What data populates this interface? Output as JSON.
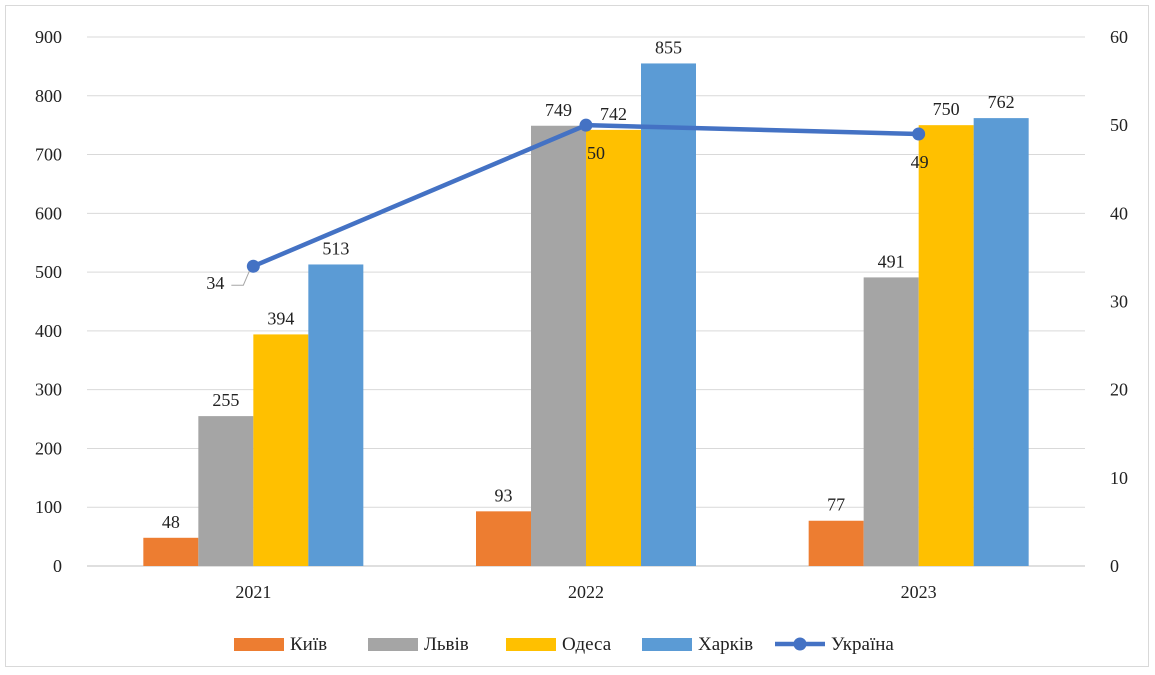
{
  "chart_data": {
    "type": "bar",
    "categories": [
      "2021",
      "2022",
      "2023"
    ],
    "series": [
      {
        "name": "Київ",
        "color": "#ED7D31",
        "values": [
          48,
          93,
          77
        ]
      },
      {
        "name": "Львів",
        "color": "#A5A5A5",
        "values": [
          255,
          749,
          491
        ]
      },
      {
        "name": "Одеса",
        "color": "#FFC000",
        "values": [
          394,
          742,
          750
        ]
      },
      {
        "name": "Харків",
        "color": "#5B9BD5",
        "values": [
          513,
          855,
          762
        ]
      }
    ],
    "line_series": {
      "name": "Україна",
      "color": "#4472C4",
      "axis": "secondary",
      "values": [
        34,
        50,
        49
      ]
    },
    "ylim": [
      0,
      900
    ],
    "yticks": [
      0,
      100,
      200,
      300,
      400,
      500,
      600,
      700,
      800,
      900
    ],
    "y2lim": [
      0,
      60
    ],
    "y2ticks": [
      0,
      10,
      20,
      30,
      40,
      50,
      60
    ],
    "grid": true,
    "legend_position": "bottom",
    "title": "",
    "xlabel": "",
    "ylabel": ""
  }
}
